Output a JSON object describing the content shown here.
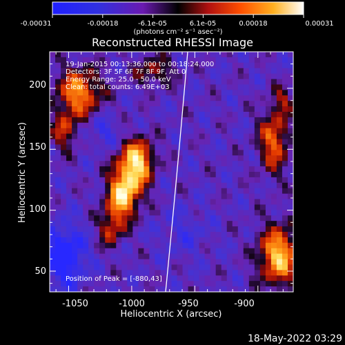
{
  "colorbar": {
    "tick_labels": [
      "-0.00031",
      "-0.00018",
      "-6.1e-05",
      "6.1e-05",
      "0.00018",
      "0.00031"
    ],
    "unit_label": "(photons cm⁻² s⁻¹ asec⁻²)",
    "range": [
      -0.00031,
      0.00031
    ]
  },
  "chart_data": {
    "type": "heatmap",
    "title": "Reconstructed RHESSI Image",
    "xlabel": "Heliocentric X (arcsec)",
    "ylabel": "Heliocentric Y (arcsec)",
    "xlim": [
      -1065,
      -872
    ],
    "ylim": [
      33,
      230
    ],
    "x_ticks": [
      -1050,
      -1000,
      -950,
      -900
    ],
    "y_ticks": [
      50,
      100,
      150,
      200
    ],
    "annotations": [
      "19-Jan-2015 00:13:36.000 to 00:18:24.000",
      "Detectors: 3F 5F 6F 7F 8F 9F, Att 0",
      "Energy Range: 25.0 - 50.0 keV",
      "Clean: total counts: 6.49E+03"
    ],
    "peak_label": "Position of Peak = [-880,43]",
    "peak": [
      -880,
      43
    ],
    "colormap": "blue-purple-red-yellow-white"
  },
  "footer_timestamp": "18-May-2022 03:29"
}
